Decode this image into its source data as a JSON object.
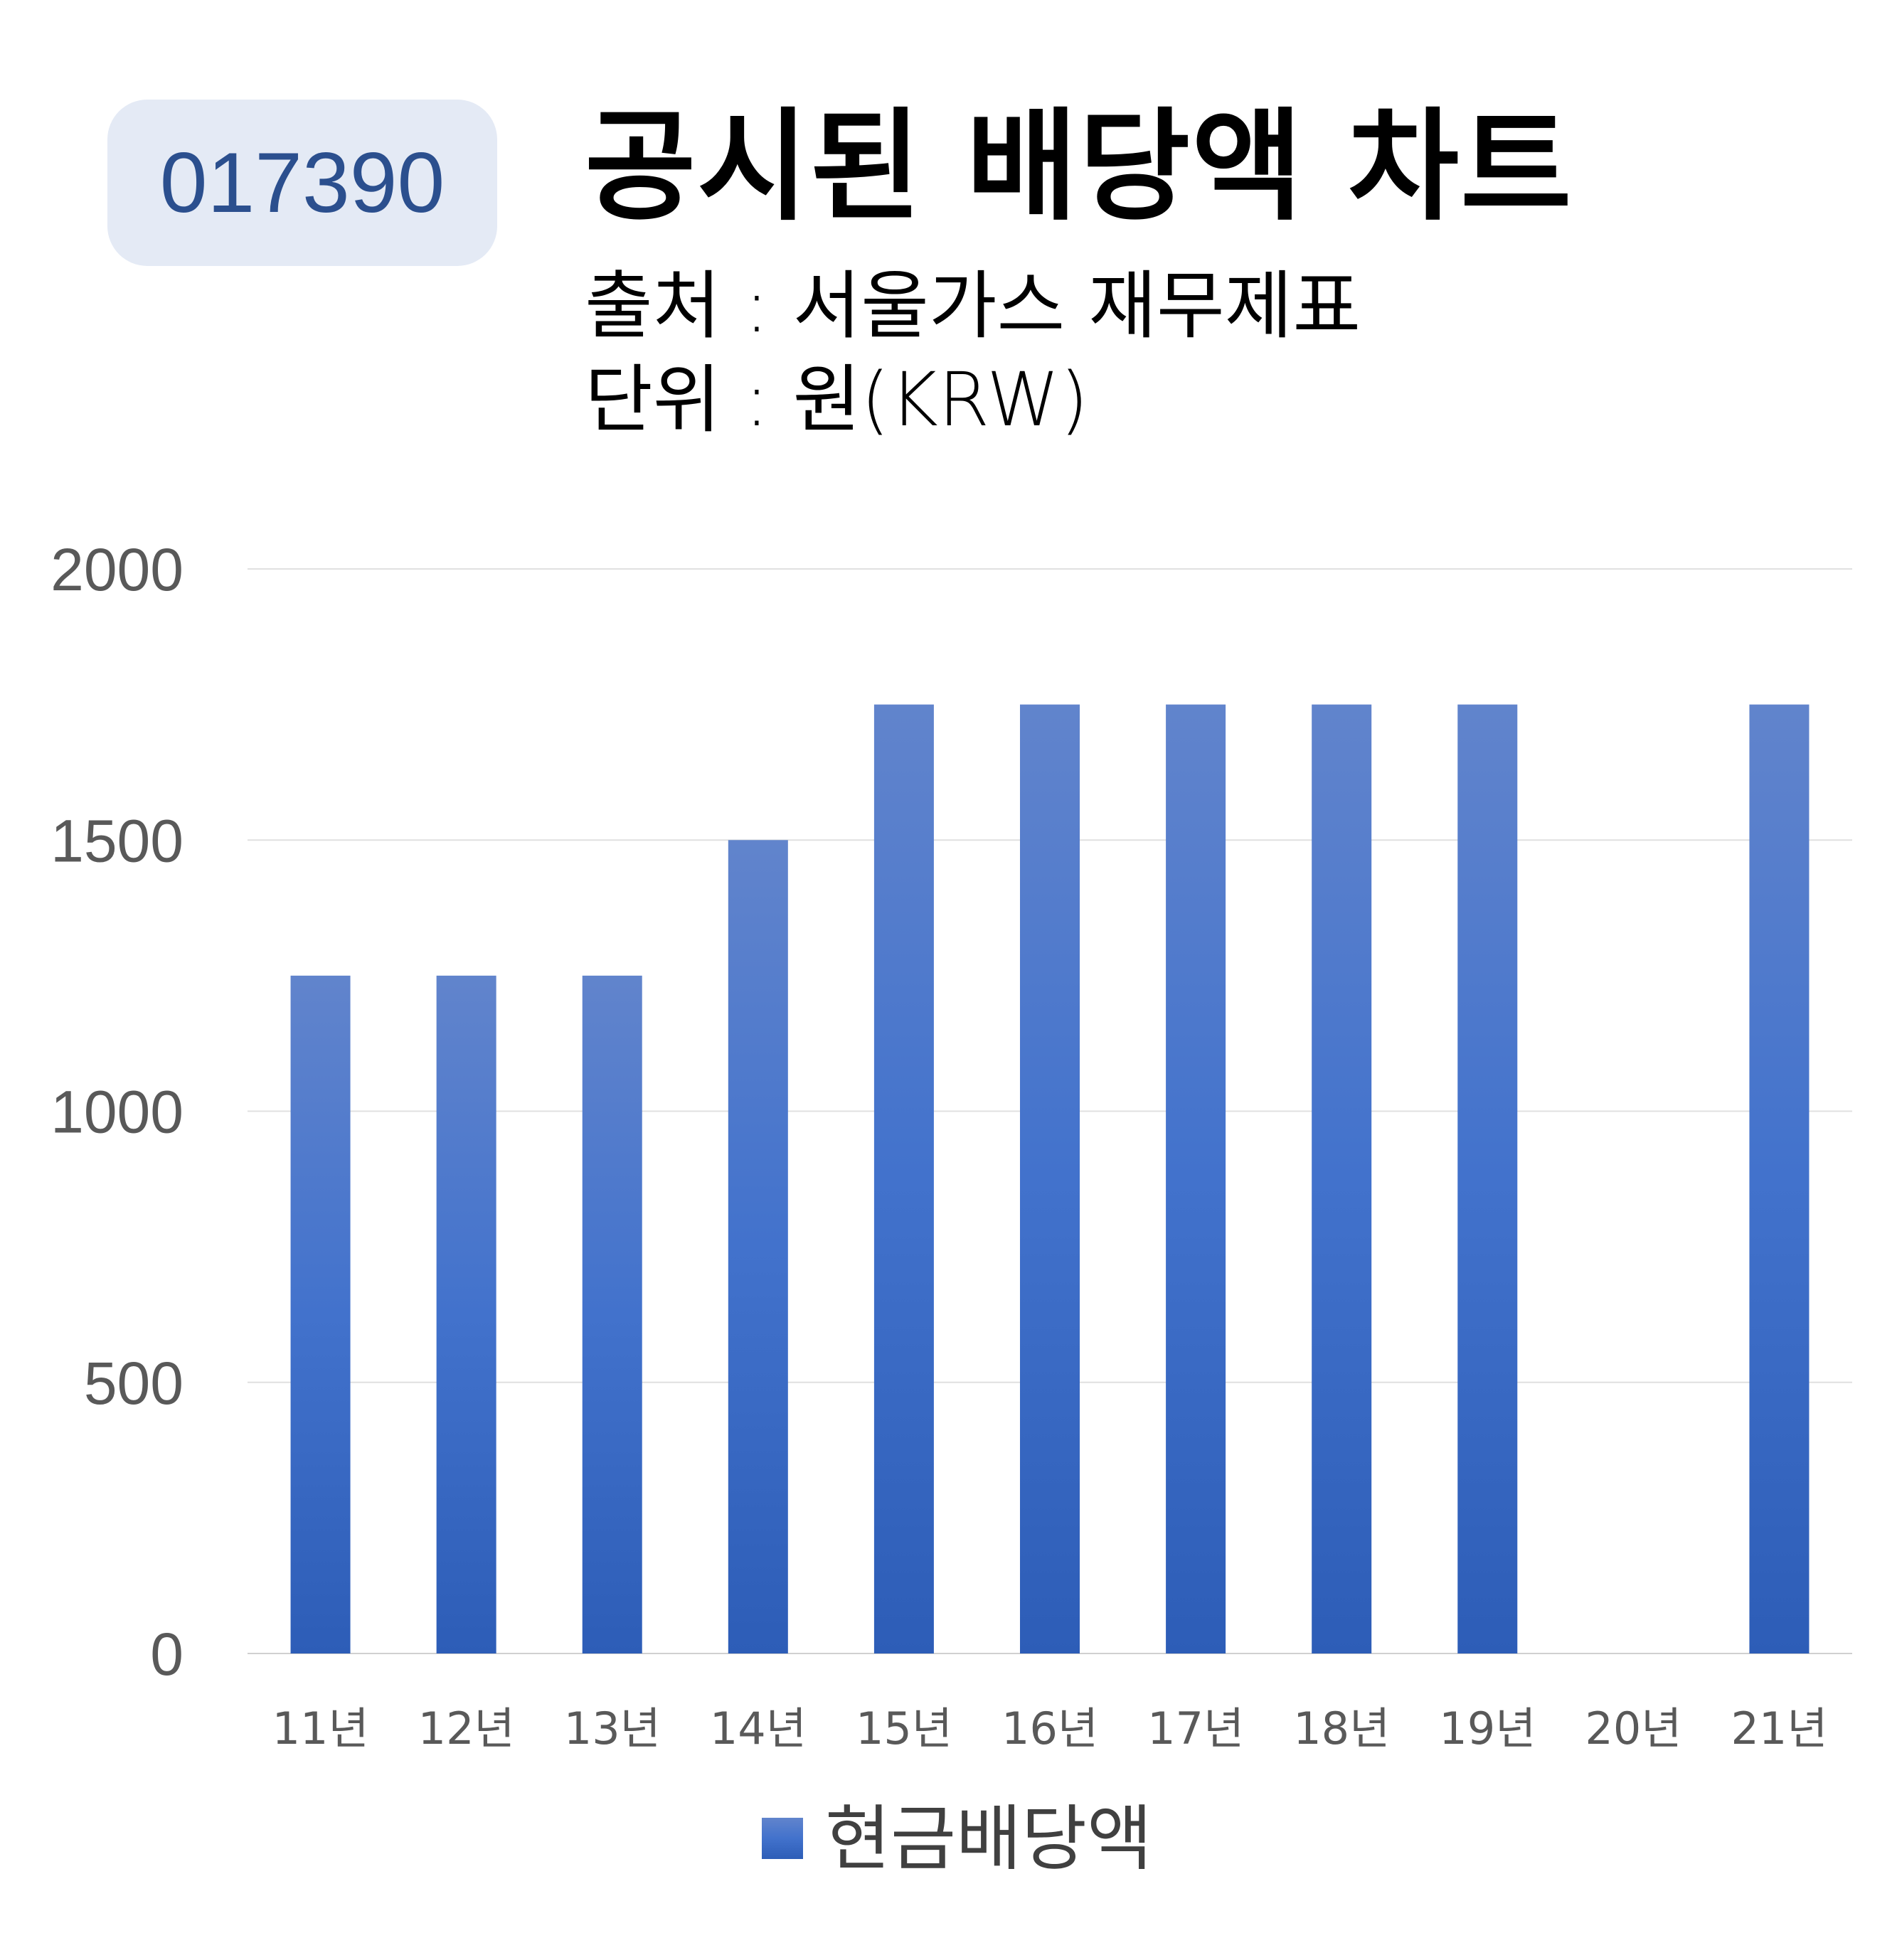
{
  "badge": "017390",
  "title": "공시된 배당액 차트",
  "subtitle_source": "출처 : 서울가스 재무제표",
  "subtitle_unit": "단위 : 원(KRW)",
  "chart_data": {
    "type": "bar",
    "categories": [
      "11년",
      "12년",
      "13년",
      "14년",
      "15년",
      "16년",
      "17년",
      "18년",
      "19년",
      "20년",
      "21년"
    ],
    "series": [
      {
        "name": "현금배당액",
        "values": [
          1250,
          1250,
          1250,
          1500,
          1750,
          1750,
          1750,
          1750,
          1750,
          0,
          1750
        ],
        "color": "#3a66c4"
      }
    ],
    "y_ticks": [
      0,
      500,
      1000,
      1500,
      2000
    ],
    "ylim": [
      0,
      2000
    ],
    "grid": true,
    "legend_position": "bottom"
  }
}
